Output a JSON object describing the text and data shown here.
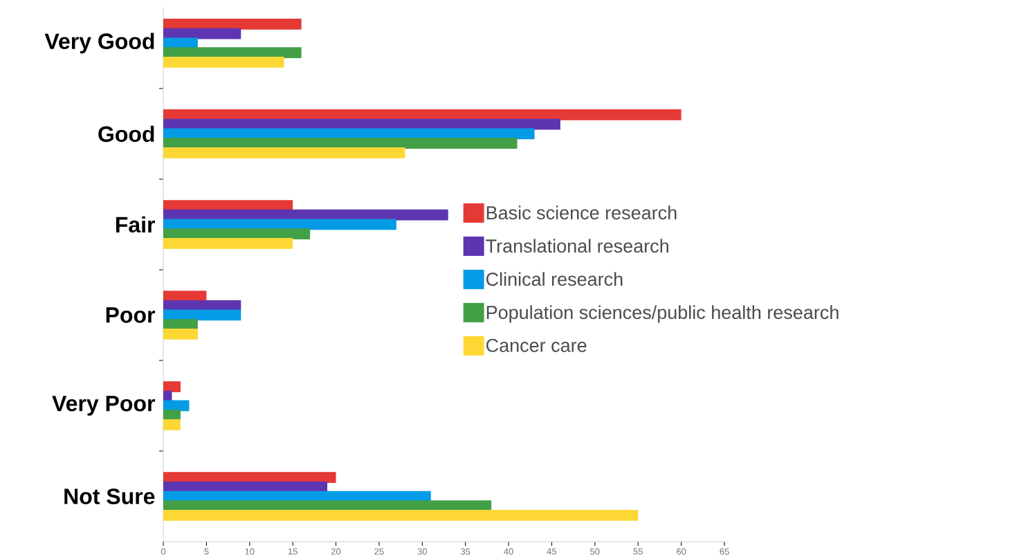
{
  "chart_data": {
    "type": "bar",
    "orientation": "horizontal",
    "categories": [
      "Very Good",
      "Good",
      "Fair",
      "Poor",
      "Very Poor",
      "Not Sure"
    ],
    "series": [
      {
        "name": "Basic science research",
        "color": "#e53935",
        "values": [
          16,
          60,
          15,
          5,
          2,
          20
        ]
      },
      {
        "name": "Translational research",
        "color": "#5e35b1",
        "values": [
          9,
          46,
          33,
          9,
          1,
          19
        ]
      },
      {
        "name": "Clinical research",
        "color": "#039be5",
        "values": [
          4,
          43,
          27,
          9,
          3,
          31
        ]
      },
      {
        "name": "Population sciences/public health research",
        "color": "#43a047",
        "values": [
          16,
          41,
          17,
          4,
          2,
          38
        ]
      },
      {
        "name": "Cancer care",
        "color": "#fdd835",
        "values": [
          14,
          28,
          15,
          4,
          2,
          55
        ]
      }
    ],
    "xlim": [
      0,
      65
    ],
    "xticks": [
      0,
      5,
      10,
      15,
      20,
      25,
      30,
      35,
      40,
      45,
      50,
      55,
      60,
      65
    ],
    "grid": false,
    "legend": "right"
  }
}
